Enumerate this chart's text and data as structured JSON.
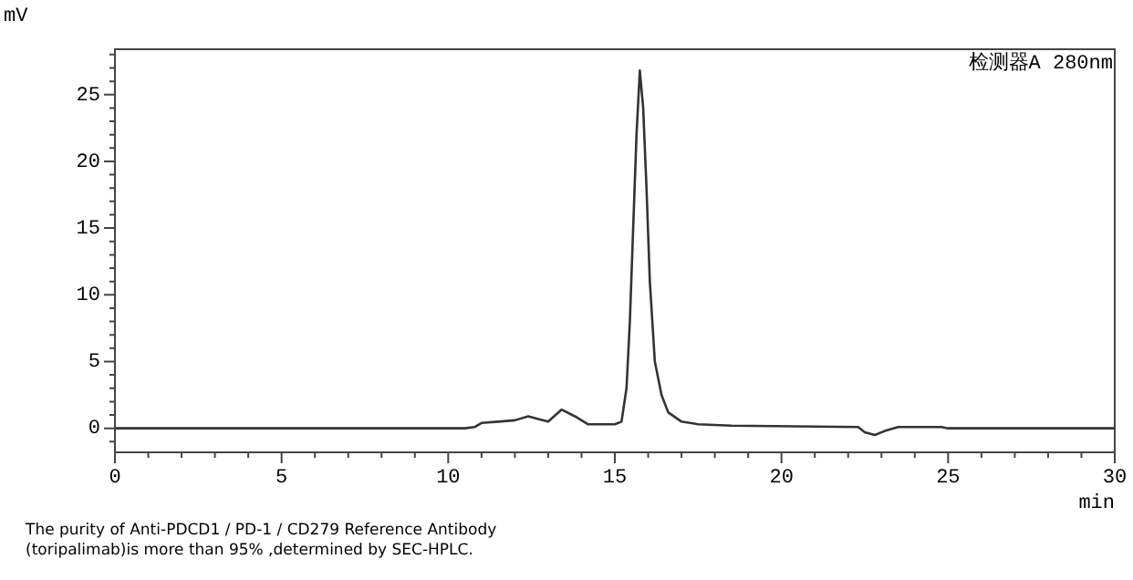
{
  "chart_data": {
    "type": "line",
    "xlabel": "min",
    "ylabel": "mV",
    "annotations": [
      "检测器A 280nm",
      "The purity of Anti-PDCD1 / PD-1 / CD279 Reference Antibody (toripalimab)is more than 95% ,determined by SEC-HPLC."
    ],
    "x": [
      0,
      10.5,
      10.8,
      11.0,
      11.5,
      12.0,
      12.4,
      12.7,
      13.0,
      13.4,
      13.8,
      14.2,
      15.0,
      15.2,
      15.35,
      15.45,
      15.55,
      15.65,
      15.75,
      15.85,
      15.95,
      16.05,
      16.2,
      16.4,
      16.6,
      17.0,
      17.5,
      18.5,
      22.3,
      22.5,
      22.8,
      23.1,
      23.5,
      24.8,
      25,
      30
    ],
    "series": [
      {
        "color": "#333333",
        "values": [
          0,
          0,
          0.1,
          0.4,
          0.5,
          0.6,
          0.9,
          0.7,
          0.5,
          1.4,
          0.9,
          0.3,
          0.3,
          0.5,
          3,
          8,
          15,
          22,
          26.8,
          24,
          18,
          11,
          5,
          2.5,
          1.2,
          0.5,
          0.3,
          0.2,
          0.1,
          -0.3,
          -0.5,
          -0.2,
          0.1,
          0.1,
          0,
          0
        ]
      }
    ],
    "xlim": [
      0,
      30
    ],
    "ylim": [
      -1.8,
      28.4
    ],
    "marker": "none",
    "line_style": "solid",
    "grid": false,
    "legend": false,
    "xticks": [
      0,
      {
        "value": 1,
        "label": null
      },
      {
        "value": 2,
        "label": null
      },
      {
        "value": 3,
        "label": null
      },
      {
        "value": 4,
        "label": null
      },
      5,
      {
        "value": 6,
        "label": null
      },
      {
        "value": 7,
        "label": null
      },
      {
        "value": 8,
        "label": null
      },
      {
        "value": 9,
        "label": null
      },
      10,
      {
        "value": 11,
        "label": null
      },
      {
        "value": 12,
        "label": null
      },
      {
        "value": 13,
        "label": null
      },
      {
        "value": 14,
        "label": null
      },
      15,
      {
        "value": 16,
        "label": null
      },
      {
        "value": 17,
        "label": null
      },
      {
        "value": 18,
        "label": null
      },
      {
        "value": 19,
        "label": null
      },
      20,
      {
        "value": 21,
        "label": null
      },
      {
        "value": 22,
        "label": null
      },
      {
        "value": 23,
        "label": null
      },
      {
        "value": 24,
        "label": null
      },
      25,
      {
        "value": 26,
        "label": null
      },
      {
        "value": 27,
        "label": null
      },
      {
        "value": 28,
        "label": null
      },
      {
        "value": 29,
        "label": null
      },
      30
    ],
    "yticks": [
      {
        "value": -1,
        "label": null
      },
      0,
      {
        "value": 1,
        "label": null
      },
      {
        "value": 2,
        "label": null
      },
      {
        "value": 3,
        "label": null
      },
      {
        "value": 4,
        "label": null
      },
      5,
      {
        "value": 6,
        "label": null
      },
      {
        "value": 7,
        "label": null
      },
      {
        "value": 8,
        "label": null
      },
      {
        "value": 9,
        "label": null
      },
      10,
      {
        "value": 11,
        "label": null
      },
      {
        "value": 12,
        "label": null
      },
      {
        "value": 13,
        "label": null
      },
      {
        "value": 14,
        "label": null
      },
      15,
      {
        "value": 16,
        "label": null
      },
      {
        "value": 17,
        "label": null
      },
      {
        "value": 18,
        "label": null
      },
      {
        "value": 19,
        "label": null
      },
      20,
      {
        "value": 21,
        "label": null
      },
      {
        "value": 22,
        "label": null
      },
      {
        "value": 23,
        "label": null
      },
      {
        "value": 24,
        "label": null
      },
      25,
      {
        "value": 26,
        "label": null
      },
      {
        "value": 27,
        "label": null
      },
      {
        "value": 28,
        "label": null
      }
    ]
  }
}
